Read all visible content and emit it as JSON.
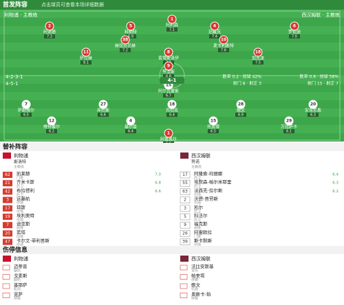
{
  "header": {
    "title": "首发阵容",
    "subtitle": "点击球员可查看本场详细数据"
  },
  "pitch": {
    "home_label": "利物浦 · 主教练",
    "away_label": "西汉姆联 · 主教练",
    "home_players": [
      {
        "number": "1",
        "name": "阿利森",
        "rating": "7.1"
      },
      {
        "number": "2",
        "name": "阿诺德",
        "rating": "7.3"
      },
      {
        "number": "5",
        "name": "科纳特",
        "rating": "6.9"
      },
      {
        "number": "4",
        "name": "范戴克",
        "rating": "7.4"
      },
      {
        "number": "6",
        "name": "罗伯逊",
        "rating": "7.0"
      },
      {
        "number": "38",
        "name": "赫拉芬贝赫",
        "rating": "7.2"
      },
      {
        "number": "10",
        "name": "麦卡利斯特",
        "rating": "7.6"
      },
      {
        "number": "11",
        "name": "萨拉赫",
        "rating": "8.1"
      },
      {
        "number": "8",
        "name": "索博斯洛伊",
        "rating": "7.3"
      },
      {
        "number": "18",
        "name": "加克波",
        "rating": "7.5"
      },
      {
        "number": "9",
        "name": "努涅斯",
        "rating": "6.8"
      }
    ],
    "away_players": [
      {
        "number": "15",
        "name": "阿尔瓦雷斯",
        "rating": "6.7"
      },
      {
        "number": "7",
        "name": "萨默维尔",
        "rating": "6.5"
      },
      {
        "number": "27",
        "name": "库杜斯",
        "rating": "6.6"
      },
      {
        "number": "18",
        "name": "苏切克",
        "rating": "6.4"
      },
      {
        "number": "28",
        "name": "鲍文",
        "rating": "6.9"
      },
      {
        "number": "20",
        "name": "安东尼奥",
        "rating": "6.3"
      },
      {
        "number": "12",
        "name": "维特塞尔",
        "rating": "6.2"
      },
      {
        "number": "4",
        "name": "基尔曼",
        "rating": "6.4"
      },
      {
        "number": "15",
        "name": "托迪博",
        "rating": "6.5"
      },
      {
        "number": "29",
        "name": "万比萨卡",
        "rating": "6.1"
      },
      {
        "number": "1",
        "name": "阿雷奥拉",
        "rating": "6.6"
      }
    ],
    "home_formation": "4-2-3-1",
    "away_formation": "4-5-1",
    "home_stats": [
      "胜率 0.6 · 控球 58%",
      "射门 15 · 射正 7"
    ],
    "away_stats": [
      "胜率 0.2 · 控球 42%",
      "射门 8 · 射正 3"
    ],
    "score": "4-1"
  },
  "subs": {
    "title": "替补阵容",
    "home": {
      "team": "利物浦",
      "coach": "斯洛特",
      "coach_label": "主教练",
      "players": [
        {
          "number": "62",
          "name": "凯莱赫",
          "position": "门将",
          "rating": "7.0"
        },
        {
          "number": "21",
          "name": "齐米卡斯",
          "position": "后卫",
          "rating": "6.8"
        },
        {
          "number": "42",
          "name": "布拉德利",
          "position": "后卫",
          "rating": "6.6"
        },
        {
          "number": "3",
          "name": "远藤航",
          "position": "中场"
        },
        {
          "number": "17",
          "name": "琼斯",
          "position": "中场"
        },
        {
          "number": "19",
          "name": "埃利奥特",
          "position": "中场"
        },
        {
          "number": "7",
          "name": "迪亚斯",
          "position": "前锋"
        },
        {
          "number": "20",
          "name": "若塔",
          "position": "前锋"
        },
        {
          "number": "47",
          "name": "卡尔文-菲利普斯",
          "position": "中场"
        }
      ]
    },
    "away": {
      "team": "西汉姆联",
      "coach": "努诺",
      "coach_label": "主教练",
      "players": [
        {
          "number": "17",
          "name": "阿隆索-玛丽娜",
          "position": "后卫",
          "rating": "6.4"
        },
        {
          "number": "55",
          "name": "埃默森-帕尔米耶里",
          "position": "后卫",
          "rating": "6.3"
        },
        {
          "number": "63",
          "name": "法西克-拉尔斯",
          "position": "中场",
          "rating": "6.2"
        },
        {
          "number": "2",
          "name": "沃德-普劳斯",
          "position": "中场"
        },
        {
          "number": "3",
          "name": "凯尔",
          "position": "后卫"
        },
        {
          "number": "5",
          "name": "科法尔",
          "position": "后卫"
        },
        {
          "number": "9",
          "name": "福克斯",
          "position": "前锋"
        },
        {
          "number": "26",
          "name": "阿雷欧拉",
          "position": "门将"
        },
        {
          "number": "39",
          "name": "斯卡默斯",
          "position": "中场"
        }
      ]
    }
  },
  "injuries": {
    "title": "伤停信息",
    "home": {
      "team": "利物浦",
      "players": [
        {
          "name": "迈蒂普",
          "reason": "腿伤"
        },
        {
          "name": "戈麦斯",
          "reason": "膝伤"
        },
        {
          "name": "基耶萨",
          "reason": "肌肉"
        },
        {
          "name": "宽萨",
          "reason": "停赛"
        }
      ]
    },
    "away": {
      "team": "西汉姆联",
      "players": [
        {
          "name": "法比安斯基",
          "reason": "背伤"
        },
        {
          "name": "帕奎塔",
          "reason": "停赛"
        },
        {
          "name": "鲍文",
          "reason": "伤病"
        },
        {
          "name": "奥斯卡-珀",
          "reason": "停赛"
        }
      ]
    }
  }
}
